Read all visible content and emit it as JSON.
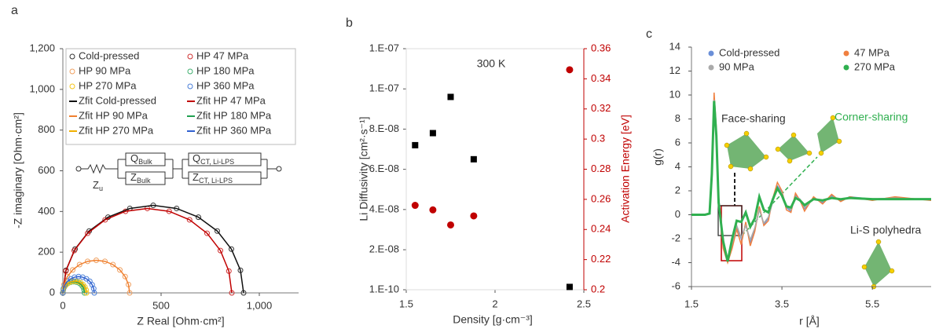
{
  "chart_data": [
    {
      "type": "scatter",
      "panel_label": "a",
      "x_label": "Z Real [Ohm·cm²]",
      "y_label": "-Z imaginary [Ohm·cm²]",
      "xlim": [
        0,
        1200
      ],
      "xticks": [
        0,
        500,
        {
          "value": 1000,
          "label": "1,000"
        }
      ],
      "ylim": [
        0,
        1200
      ],
      "yticks": [
        0,
        200,
        400,
        600,
        800,
        {
          "value": 1000,
          "label": "1,000"
        },
        {
          "value": 1200,
          "label": "1,200"
        }
      ],
      "series": [
        {
          "name": "Cold-pressed",
          "color": "#333333",
          "style": "marker",
          "x": [
            0,
            16,
            62,
            134,
            230,
            341,
            460,
            579,
            690,
            786,
            858,
            904,
            920
          ],
          "values": [
            0,
            111,
            215,
            304,
            372,
            415,
            430,
            415,
            372,
            304,
            215,
            111,
            0
          ]
        },
        {
          "name": "HP 47 MPa",
          "color": "#d03030",
          "style": "marker",
          "x": [
            0,
            15,
            58,
            126,
            215,
            319,
            430,
            541,
            645,
            734,
            802,
            845,
            860
          ],
          "values": [
            0,
            107,
            208,
            293,
            359,
            401,
            415,
            401,
            359,
            293,
            208,
            107,
            0
          ]
        },
        {
          "name": "HP 90 MPa",
          "color": "#f0a060",
          "style": "marker",
          "x": [
            0,
            6,
            23,
            50,
            85,
            126,
            170,
            214,
            255,
            290,
            317,
            334,
            340
          ],
          "values": [
            0,
            41,
            80,
            113,
            139,
            155,
            160,
            155,
            139,
            113,
            80,
            41,
            0
          ]
        },
        {
          "name": "HP 180 MPa",
          "color": "#40b070",
          "style": "marker",
          "x": [
            0,
            2,
            7,
            16,
            28,
            41,
            55,
            69,
            83,
            94,
            103,
            108,
            110
          ],
          "values": [
            0,
            14,
            28,
            39,
            48,
            53,
            55,
            53,
            48,
            39,
            28,
            14,
            0
          ]
        },
        {
          "name": "HP 270 MPa",
          "color": "#f5c518",
          "style": "marker",
          "x": [
            0,
            2,
            8,
            18,
            30,
            45,
            60,
            75,
            90,
            102,
            112,
            118,
            120
          ],
          "values": [
            0,
            15,
            29,
            41,
            50,
            56,
            58,
            56,
            50,
            41,
            29,
            15,
            0
          ]
        },
        {
          "name": "HP 360 MPa",
          "color": "#4a7fd8",
          "style": "marker",
          "x": [
            0,
            3,
            11,
            23,
            40,
            59,
            80,
            101,
            120,
            137,
            149,
            157,
            160
          ],
          "values": [
            0,
            21,
            40,
            57,
            69,
            77,
            80,
            77,
            69,
            57,
            40,
            21,
            0
          ]
        },
        {
          "name": "Zfit Cold-pressed",
          "color": "#111111",
          "style": "line",
          "x": [
            0,
            16,
            62,
            134,
            230,
            341,
            460,
            579,
            690,
            786,
            858,
            904,
            920
          ],
          "values": [
            0,
            111,
            215,
            304,
            372,
            415,
            430,
            415,
            372,
            304,
            215,
            111,
            0
          ]
        },
        {
          "name": "Zfit HP 47 MPa",
          "color": "#c00000",
          "style": "line",
          "x": [
            0,
            15,
            58,
            126,
            215,
            319,
            430,
            541,
            645,
            734,
            802,
            845,
            860
          ],
          "values": [
            0,
            107,
            208,
            293,
            359,
            401,
            415,
            401,
            359,
            293,
            208,
            107,
            0
          ]
        },
        {
          "name": "Zfit HP 90 MPa",
          "color": "#f08030",
          "style": "line",
          "x": [
            0,
            6,
            23,
            50,
            85,
            126,
            170,
            214,
            255,
            290,
            317,
            334,
            340
          ],
          "values": [
            0,
            41,
            80,
            113,
            139,
            155,
            160,
            155,
            139,
            113,
            80,
            41,
            0
          ]
        },
        {
          "name": "Zfit HP 180 MPa",
          "color": "#20a050",
          "style": "line",
          "x": [
            0,
            2,
            7,
            16,
            28,
            41,
            55,
            69,
            83,
            94,
            103,
            108,
            110
          ],
          "values": [
            0,
            14,
            28,
            39,
            48,
            53,
            55,
            53,
            48,
            39,
            28,
            14,
            0
          ]
        },
        {
          "name": "Zfit HP 270 MPa",
          "color": "#f0b000",
          "style": "line",
          "x": [
            0,
            2,
            8,
            18,
            30,
            45,
            60,
            75,
            90,
            102,
            112,
            118,
            120
          ],
          "values": [
            0,
            15,
            29,
            41,
            50,
            56,
            58,
            56,
            50,
            41,
            29,
            15,
            0
          ]
        },
        {
          "name": "Zfit HP 360 MPa",
          "color": "#3060d0",
          "style": "line",
          "x": [
            0,
            3,
            11,
            23,
            40,
            59,
            80,
            101,
            120,
            137,
            149,
            157,
            160
          ],
          "values": [
            0,
            21,
            40,
            57,
            69,
            77,
            80,
            77,
            69,
            57,
            40,
            21,
            0
          ]
        }
      ],
      "circuit": [
        {
          "main": "Z",
          "sub": "u"
        },
        {
          "main": "Q",
          "sub": "Bulk"
        },
        {
          "main": "Z",
          "sub": "Bulk"
        },
        {
          "main": "Q",
          "sub": "CT, Li-LPS"
        },
        {
          "main": "Z",
          "sub": "CT, Li-LPS"
        }
      ]
    },
    {
      "type": "scatter",
      "panel_label": "b",
      "annotation": "300 K",
      "x_label": "Density [g·cm⁻³]",
      "y_label": "Li Diffusivity [cm²·s⁻¹]",
      "y2_label": "Activation Energy [eV]",
      "xlim": [
        1.5,
        2.5
      ],
      "xticks": [
        1.5,
        2,
        2.5
      ],
      "ylim": [
        1e-10,
        1.2e-07
      ],
      "yticks": [
        {
          "value": 1e-10,
          "label": "1.E-10"
        },
        {
          "value": 2e-08,
          "label": "2.E-08"
        },
        {
          "value": 4e-08,
          "label": "4.E-08"
        },
        {
          "value": 6e-08,
          "label": "6.E-08"
        },
        {
          "value": 8e-08,
          "label": "8.E-08"
        },
        {
          "value": 1e-07,
          "label": "1.E-07"
        },
        {
          "value": 1.2e-07,
          "label": "1.E-07"
        }
      ],
      "y2lim": [
        0.2,
        0.36
      ],
      "y2ticks": [
        0.2,
        0.22,
        0.24,
        0.26,
        0.28,
        0.3,
        0.32,
        0.34,
        0.36
      ],
      "series": [
        {
          "color": "#000000",
          "style": "marker",
          "marker": "square",
          "x": [
            1.55,
            1.65,
            1.75,
            1.88,
            2.42
          ],
          "values": [
            7.2e-08,
            7.8e-08,
            9.6e-08,
            6.5e-08,
            1.5e-09
          ]
        },
        {
          "color": "#c00000",
          "style": "marker",
          "marker": "circle",
          "axis": "y2",
          "x": [
            1.55,
            1.65,
            1.75,
            1.88,
            2.42
          ],
          "values": [
            0.256,
            0.253,
            0.243,
            0.249,
            0.346
          ]
        }
      ]
    },
    {
      "type": "line",
      "panel_label": "c",
      "x_label": "r [Å]",
      "y_label": "g(r)",
      "xlim": [
        1.5,
        6.8
      ],
      "xticks": [
        1.5,
        3.5,
        5.5
      ],
      "ylim": [
        -6,
        14
      ],
      "yticks": [
        -6,
        -4,
        -2,
        0,
        2,
        4,
        6,
        8,
        10,
        12,
        14
      ],
      "x": [
        1.5,
        1.8,
        1.9,
        1.95,
        2.0,
        2.05,
        2.1,
        2.2,
        2.3,
        2.4,
        2.5,
        2.6,
        2.7,
        2.8,
        2.9,
        3.0,
        3.1,
        3.2,
        3.3,
        3.4,
        3.5,
        3.6,
        3.7,
        3.8,
        3.9,
        4.0,
        4.2,
        4.4,
        4.6,
        4.8,
        5.0,
        5.5,
        6.0,
        6.5,
        6.8
      ],
      "series": [
        {
          "name": "Cold-pressed",
          "color": "#6a8fd8",
          "values": [
            0,
            0,
            0.1,
            3.5,
            9.8,
            7,
            1.5,
            -2.5,
            -3.8,
            -2.5,
            -1,
            -2,
            -0.8,
            -2.3,
            -1.2,
            0.5,
            -0.8,
            -0.3,
            1.2,
            2.4,
            1.9,
            0.6,
            0.3,
            1.6,
            1.3,
            0.5,
            1.4,
            1.0,
            1.6,
            1.2,
            1.5,
            1.3,
            1.4,
            1.3,
            1.3
          ]
        },
        {
          "name": "47 MPa",
          "color": "#f08040",
          "values": [
            0,
            0,
            0.1,
            3.8,
            10.2,
            7.2,
            1.3,
            -2.8,
            -4,
            -2.8,
            -1.2,
            -2.5,
            -0.6,
            -2.6,
            -1.4,
            0.7,
            -0.9,
            -0.5,
            1.4,
            2.7,
            2.0,
            0.4,
            0.2,
            1.8,
            1.2,
            0.3,
            1.5,
            0.9,
            1.7,
            1.1,
            1.5,
            1.2,
            1.5,
            1.3,
            1.2
          ]
        },
        {
          "name": "90 MPa",
          "color": "#aaaaaa",
          "values": [
            0,
            0,
            0.1,
            3.6,
            9.6,
            6.8,
            1.6,
            -2.4,
            -3.7,
            -2.4,
            -0.9,
            -1.9,
            -0.9,
            -2.1,
            -1.1,
            0.4,
            -0.7,
            -0.2,
            1.1,
            2.3,
            1.8,
            0.7,
            0.4,
            1.5,
            1.3,
            0.6,
            1.3,
            1.1,
            1.5,
            1.3,
            1.4,
            1.3,
            1.4,
            1.3,
            1.3
          ]
        },
        {
          "name": "270 MPa",
          "color": "#30b050",
          "values": [
            0,
            0,
            0.1,
            3.4,
            9.5,
            6.6,
            1.0,
            -2.2,
            -3.9,
            -2.0,
            -0.5,
            -0.6,
            0.2,
            -1.0,
            -0.3,
            1.5,
            0.4,
            0.2,
            1.3,
            2.2,
            1.6,
            0.7,
            0.6,
            1.4,
            1.2,
            0.8,
            1.3,
            1.2,
            1.4,
            1.3,
            1.4,
            1.3,
            1.3,
            1.3,
            1.3
          ]
        }
      ],
      "annotations": [
        {
          "text": "Face-sharing",
          "color": "#333333"
        },
        {
          "text": "Corner-sharing",
          "color": "#30b050"
        },
        {
          "text": "Li-S polyhedra",
          "color": "#333333"
        }
      ]
    }
  ]
}
